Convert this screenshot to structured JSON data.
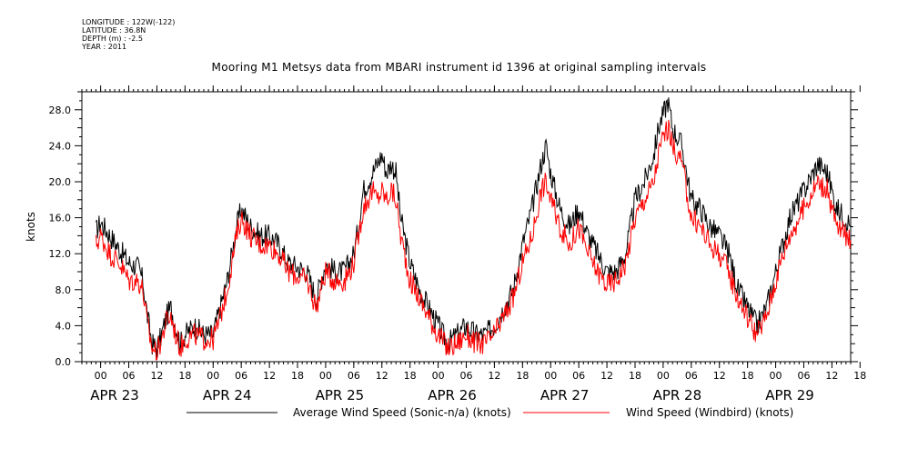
{
  "meta": {
    "longitude": "LONGITUDE : 122W(-122)",
    "latitude": "LATITUDE : 36.8N",
    "depth": "DEPTH (m) : -2.5",
    "year": "YEAR : 2011"
  },
  "chart_data": {
    "type": "line",
    "title": "Mooring M1 Metsys data from MBARI instrument id 1396 at original sampling intervals",
    "ylabel": "knots",
    "xlabel": "",
    "ylim": [
      0,
      30
    ],
    "xlim_hours": [
      -4,
      160
    ],
    "y_ticks": [
      "0.0",
      "4.0",
      "8.0",
      "12.0",
      "16.0",
      "20.0",
      "24.0",
      "28.0"
    ],
    "x_hour_ticks": [
      "00",
      "06",
      "12",
      "18",
      "00",
      "06",
      "12",
      "18",
      "00",
      "06",
      "12",
      "18",
      "00",
      "06",
      "12",
      "18",
      "00",
      "06",
      "12",
      "18",
      "00",
      "06",
      "12",
      "18",
      "00",
      "06",
      "12",
      "18"
    ],
    "x_day_labels": [
      "APR 23",
      "APR 24",
      "APR 25",
      "APR 26",
      "APR 27",
      "APR 28",
      "APR 29"
    ],
    "series": [
      {
        "name": "Average Wind Speed (Sonic-n/a) (knots)",
        "color": "#000000",
        "points": [
          [
            -1,
            14.5
          ],
          [
            0,
            15.5
          ],
          [
            2,
            14
          ],
          [
            4,
            12.5
          ],
          [
            6,
            11
          ],
          [
            8,
            10.5
          ],
          [
            9,
            9
          ],
          [
            10,
            5
          ],
          [
            11,
            2
          ],
          [
            12,
            1.5
          ],
          [
            13,
            3
          ],
          [
            14,
            5
          ],
          [
            15,
            6
          ],
          [
            16,
            4
          ],
          [
            17,
            2
          ],
          [
            18,
            3
          ],
          [
            20,
            4
          ],
          [
            22,
            3
          ],
          [
            24,
            3
          ],
          [
            25,
            5
          ],
          [
            26,
            7
          ],
          [
            27,
            9
          ],
          [
            28,
            12
          ],
          [
            29,
            15
          ],
          [
            30,
            17
          ],
          [
            32,
            15
          ],
          [
            34,
            14
          ],
          [
            36,
            14
          ],
          [
            38,
            13
          ],
          [
            40,
            11
          ],
          [
            42,
            10.5
          ],
          [
            44,
            10
          ],
          [
            46,
            7
          ],
          [
            48,
            11
          ],
          [
            50,
            10
          ],
          [
            52,
            10
          ],
          [
            54,
            12
          ],
          [
            55,
            15
          ],
          [
            56,
            19
          ],
          [
            57,
            20
          ],
          [
            58,
            21
          ],
          [
            59,
            22
          ],
          [
            60,
            23
          ],
          [
            61,
            21
          ],
          [
            62,
            22
          ],
          [
            63,
            21
          ],
          [
            64,
            16
          ],
          [
            66,
            11
          ],
          [
            68,
            8
          ],
          [
            70,
            6
          ],
          [
            72,
            4
          ],
          [
            74,
            2
          ],
          [
            76,
            3
          ],
          [
            78,
            4
          ],
          [
            80,
            3
          ],
          [
            82,
            3
          ],
          [
            84,
            4
          ],
          [
            86,
            6
          ],
          [
            88,
            8
          ],
          [
            90,
            13
          ],
          [
            92,
            17
          ],
          [
            94,
            22
          ],
          [
            95,
            24
          ],
          [
            96,
            21
          ],
          [
            98,
            17
          ],
          [
            100,
            15
          ],
          [
            102,
            17
          ],
          [
            104,
            14
          ],
          [
            106,
            12
          ],
          [
            108,
            10
          ],
          [
            110,
            10
          ],
          [
            112,
            12
          ],
          [
            114,
            18
          ],
          [
            116,
            20
          ],
          [
            118,
            23
          ],
          [
            119,
            26
          ],
          [
            120,
            27.5
          ],
          [
            121,
            29
          ],
          [
            122,
            26
          ],
          [
            124,
            24
          ],
          [
            126,
            18
          ],
          [
            128,
            17
          ],
          [
            130,
            15
          ],
          [
            132,
            14
          ],
          [
            134,
            12
          ],
          [
            136,
            8
          ],
          [
            138,
            6
          ],
          [
            140,
            4
          ],
          [
            142,
            6
          ],
          [
            143,
            8
          ],
          [
            144,
            10
          ],
          [
            145,
            12
          ],
          [
            147,
            16
          ],
          [
            149,
            18
          ],
          [
            151,
            20
          ],
          [
            153,
            22
          ],
          [
            155,
            21
          ],
          [
            157,
            17
          ],
          [
            159,
            16
          ],
          [
            160,
            15
          ]
        ]
      },
      {
        "name": "Wind Speed (Windbird) (knots)",
        "color": "#ff0000",
        "points": [
          [
            -1,
            13
          ],
          [
            0,
            14
          ],
          [
            2,
            12
          ],
          [
            4,
            11
          ],
          [
            6,
            9
          ],
          [
            8,
            9
          ],
          [
            9,
            8
          ],
          [
            10,
            4
          ],
          [
            11,
            1.5
          ],
          [
            12,
            1
          ],
          [
            13,
            2.5
          ],
          [
            14,
            4.5
          ],
          [
            15,
            5
          ],
          [
            16,
            3
          ],
          [
            17,
            1.5
          ],
          [
            18,
            2.5
          ],
          [
            20,
            3
          ],
          [
            22,
            2.5
          ],
          [
            24,
            2.5
          ],
          [
            25,
            4
          ],
          [
            26,
            6
          ],
          [
            27,
            8
          ],
          [
            28,
            11
          ],
          [
            29,
            14
          ],
          [
            30,
            16
          ],
          [
            32,
            14
          ],
          [
            34,
            13
          ],
          [
            36,
            13
          ],
          [
            38,
            12
          ],
          [
            40,
            10
          ],
          [
            42,
            9.5
          ],
          [
            44,
            9
          ],
          [
            46,
            6
          ],
          [
            48,
            10
          ],
          [
            50,
            9
          ],
          [
            52,
            9
          ],
          [
            54,
            11
          ],
          [
            55,
            14
          ],
          [
            56,
            17
          ],
          [
            57,
            18
          ],
          [
            58,
            19
          ],
          [
            59,
            18
          ],
          [
            60,
            19
          ],
          [
            61,
            18
          ],
          [
            62,
            19
          ],
          [
            63,
            18
          ],
          [
            64,
            14
          ],
          [
            66,
            9
          ],
          [
            68,
            7
          ],
          [
            70,
            5
          ],
          [
            72,
            3
          ],
          [
            74,
            1.5
          ],
          [
            76,
            2
          ],
          [
            78,
            3
          ],
          [
            80,
            2
          ],
          [
            82,
            2
          ],
          [
            84,
            3
          ],
          [
            86,
            5
          ],
          [
            88,
            7
          ],
          [
            90,
            11
          ],
          [
            92,
            14
          ],
          [
            94,
            19
          ],
          [
            95,
            20
          ],
          [
            96,
            18
          ],
          [
            98,
            15
          ],
          [
            100,
            13
          ],
          [
            102,
            15
          ],
          [
            104,
            12
          ],
          [
            106,
            10
          ],
          [
            108,
            8.5
          ],
          [
            110,
            9
          ],
          [
            112,
            11
          ],
          [
            114,
            16
          ],
          [
            116,
            18
          ],
          [
            118,
            20
          ],
          [
            119,
            23
          ],
          [
            120,
            25
          ],
          [
            121,
            26
          ],
          [
            122,
            24
          ],
          [
            124,
            22
          ],
          [
            126,
            16
          ],
          [
            128,
            15
          ],
          [
            130,
            13
          ],
          [
            132,
            12
          ],
          [
            134,
            10
          ],
          [
            136,
            7
          ],
          [
            138,
            5
          ],
          [
            140,
            3
          ],
          [
            142,
            5
          ],
          [
            143,
            7
          ],
          [
            144,
            9
          ],
          [
            145,
            11
          ],
          [
            147,
            14
          ],
          [
            149,
            16
          ],
          [
            151,
            18
          ],
          [
            153,
            20
          ],
          [
            155,
            19
          ],
          [
            157,
            15
          ],
          [
            159,
            14
          ],
          [
            160,
            13.5
          ]
        ]
      }
    ],
    "legend": "bottom",
    "grid": false
  }
}
